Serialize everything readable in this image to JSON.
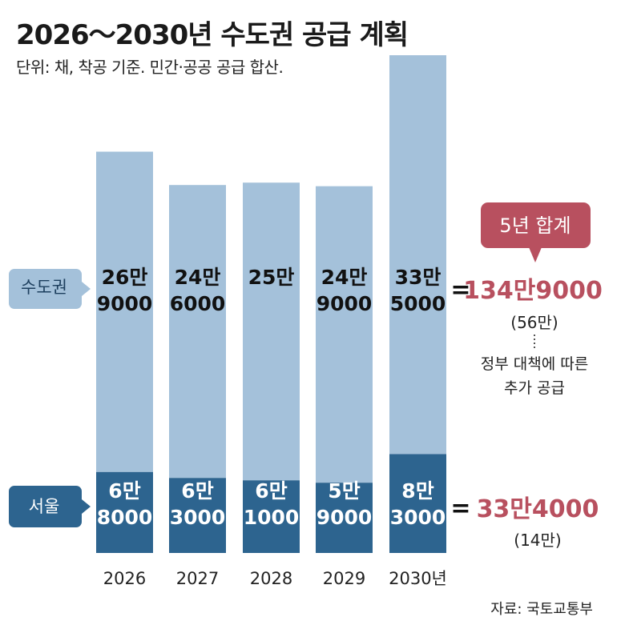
{
  "title": "2026～2030년 수도권 공급 계획",
  "subtitle": "단위: 채, 착공 기준. 민간·공공 공급 합산.",
  "source": "자료: 국토교통부",
  "colors": {
    "capital_area": "#a4c1da",
    "seoul": "#2d648f",
    "accent": "#b8505f",
    "text_dark": "#111111",
    "text_light": "#ffffff"
  },
  "chart_data": {
    "type": "bar",
    "stacked": true,
    "categories": [
      "2026",
      "2027",
      "2028",
      "2029",
      "2030년"
    ],
    "series": [
      {
        "name": "서울",
        "values": [
          68000,
          63000,
          61000,
          59000,
          83000
        ],
        "labels": [
          [
            "6만",
            "8000"
          ],
          [
            "6만",
            "3000"
          ],
          [
            "6만",
            "1000"
          ],
          [
            "5만",
            "9000"
          ],
          [
            "8만",
            "3000"
          ]
        ]
      },
      {
        "name": "수도권",
        "values": [
          269000,
          246000,
          250000,
          249000,
          335000
        ],
        "labels": [
          [
            "26만",
            "9000"
          ],
          [
            "24만",
            "6000"
          ],
          [
            "25만"
          ],
          [
            "24만",
            "9000"
          ],
          [
            "33만",
            "5000"
          ]
        ]
      }
    ],
    "annotations": {
      "capital_total": "134만9000",
      "capital_extra": "(56만)",
      "seoul_total": "33만4000",
      "seoul_extra": "(14만)",
      "equals": "=",
      "note_lines": [
        "정부 대책에 따른",
        "추가 공급"
      ],
      "callout": "5년 합계"
    }
  }
}
